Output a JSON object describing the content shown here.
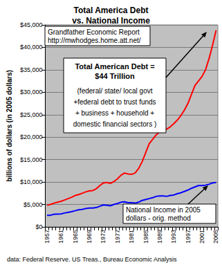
{
  "chart_data": {
    "type": "line",
    "title": "Total America Debt\nvs. National Income",
    "y_label": "billions of dollars (in 2005 dollars)",
    "categories": [
      "1957",
      null,
      null,
      null,
      "1961",
      null,
      null,
      null,
      "1965",
      null,
      null,
      null,
      "1969",
      null,
      null,
      null,
      "1973",
      null,
      null,
      null,
      "1977",
      null,
      null,
      null,
      "1981",
      null,
      null,
      null,
      "1985",
      null,
      null,
      null,
      "1989",
      null,
      null,
      null,
      "1993",
      null,
      null,
      null,
      "1997",
      null,
      null,
      null,
      "2001",
      null,
      null,
      null,
      "2005"
    ],
    "series": [
      {
        "color": "#ff0000",
        "values": [
          4800,
          5000,
          5300,
          5500,
          5700,
          6000,
          6300,
          6600,
          7000,
          7200,
          7500,
          7800,
          8000,
          8100,
          8500,
          9200,
          9800,
          9900,
          9700,
          10100,
          10700,
          11500,
          12000,
          11800,
          11700,
          12000,
          13000,
          14500,
          16500,
          18500,
          19500,
          20500,
          21200,
          21500,
          21800,
          22300,
          23000,
          23800,
          24800,
          26000,
          27500,
          29500,
          31500,
          32500,
          33500,
          35000,
          37500,
          40500,
          43800
        ]
      },
      {
        "color": "#0000ff",
        "values": [
          2600,
          2600,
          2800,
          2850,
          2900,
          3100,
          3250,
          3400,
          3600,
          3800,
          3900,
          4100,
          4200,
          4200,
          4300,
          4600,
          4900,
          4800,
          4700,
          5000,
          5200,
          5500,
          5600,
          5400,
          5400,
          5300,
          5500,
          5900,
          6100,
          6300,
          6500,
          6800,
          6900,
          6900,
          6800,
          7000,
          7100,
          7400,
          7600,
          7900,
          8200,
          8600,
          8900,
          9200,
          9200,
          9300,
          9500,
          9800,
          9900
        ]
      }
    ],
    "ylim": [
      0,
      45000
    ],
    "yticks": [
      {
        "value": 0,
        "label": "$0"
      },
      {
        "value": 5000,
        "label": "$5,000"
      },
      {
        "value": 10000,
        "label": "$10,000"
      },
      {
        "value": 15000,
        "label": "$15,000"
      },
      {
        "value": 20000,
        "label": "$20,000"
      },
      {
        "value": 25000,
        "label": "$25,000"
      },
      {
        "value": 30000,
        "label": "$30,000"
      },
      {
        "value": 35000,
        "label": "$35,000"
      },
      {
        "value": 40000,
        "label": "$40,000"
      },
      {
        "value": 45000,
        "label": "$45,000"
      }
    ],
    "grid": true,
    "annotations": [
      {
        "text": "Grandfather Economic Report\nhttp://mwhodges.home.att.net/"
      },
      {
        "heading": "Total American Debt =\n$44 Trillion",
        "text": "(federal/ state/ local govt\n+federal debt to trust funds\n+ business + household +\ndomestic financial sectors )"
      },
      {
        "text": "National Income in 2005\ndollars - orig. method"
      }
    ],
    "source": "data: Federal Reserve. US Treas., Bureau Economic Analysis"
  }
}
